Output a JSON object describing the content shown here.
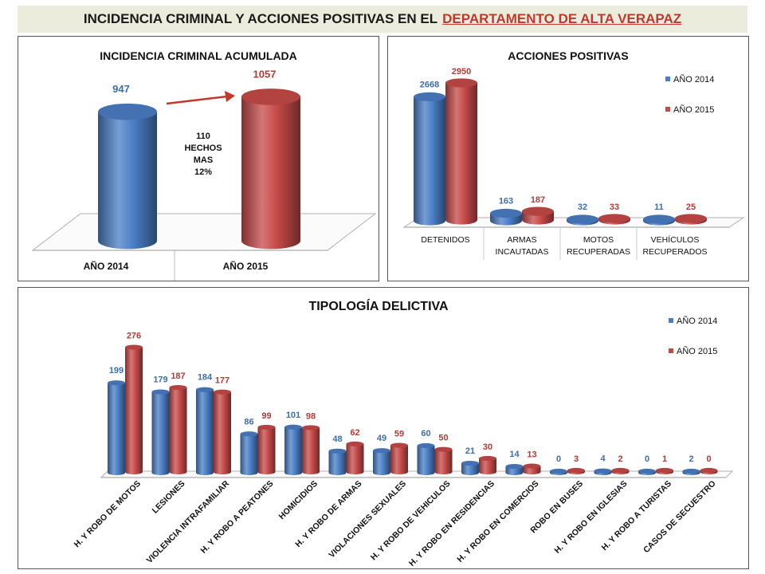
{
  "header": {
    "title_prefix": "INCIDENCIA CRIMINAL Y ACCIONES POSITIVAS EN EL",
    "title_highlight": "DEPARTAMENTO DE ALTA VERAPAZ"
  },
  "colors": {
    "blue": "#4a7ec6",
    "red": "#c64a48",
    "blue_label": "#3c6eb0",
    "red_label": "#b53a37"
  },
  "chart_data": [
    {
      "type": "bar",
      "title": "INCIDENCIA CRIMINAL ACUMULADA",
      "categories": [
        "AÑO 2014",
        "AÑO 2015"
      ],
      "values": [
        947,
        1057
      ],
      "annotation": [
        "110",
        "HECHOS",
        "MAS",
        "12%"
      ]
    },
    {
      "type": "bar",
      "title": "ACCIONES POSITIVAS",
      "categories": [
        [
          "DETENIDOS"
        ],
        [
          "ARMAS",
          "INCAUTADAS"
        ],
        [
          "MOTOS",
          "RECUPERADAS"
        ],
        [
          "VEHÍCULOS",
          "RECUPERADOS"
        ]
      ],
      "series": [
        {
          "name": "AÑO 2014",
          "values": [
            2668,
            163,
            32,
            11
          ]
        },
        {
          "name": "AÑO 2015",
          "values": [
            2950,
            187,
            33,
            25
          ]
        }
      ]
    },
    {
      "type": "bar",
      "title": "TIPOLOGÍA DELICTIVA",
      "categories": [
        "H. Y ROBO DE MOTOS",
        "LESIONES",
        "VIOLENCIA INTRAFAMILIAR",
        "H. Y ROBO A PEATONES",
        "HOMICIDIOS",
        "H. Y ROBO DE ARMAS",
        "VIOLACIONES SEXUALES",
        "H. Y ROBO DE VEHICULOS",
        "H. Y ROBO EN RESIDENCIAS",
        "H. Y ROBO EN COMERCIOS",
        "ROBO EN BUSES",
        "H. Y ROBO EN IGLESIAS",
        "H. Y ROBO A TURISTAS",
        "CASOS DE SECUESTRO"
      ],
      "series": [
        {
          "name": "AÑO 2014",
          "values": [
            199,
            179,
            184,
            86,
            101,
            48,
            49,
            60,
            21,
            14,
            0,
            4,
            0,
            2
          ]
        },
        {
          "name": "AÑO 2015",
          "values": [
            276,
            187,
            177,
            99,
            98,
            62,
            59,
            50,
            30,
            13,
            3,
            2,
            1,
            0
          ]
        }
      ]
    }
  ]
}
